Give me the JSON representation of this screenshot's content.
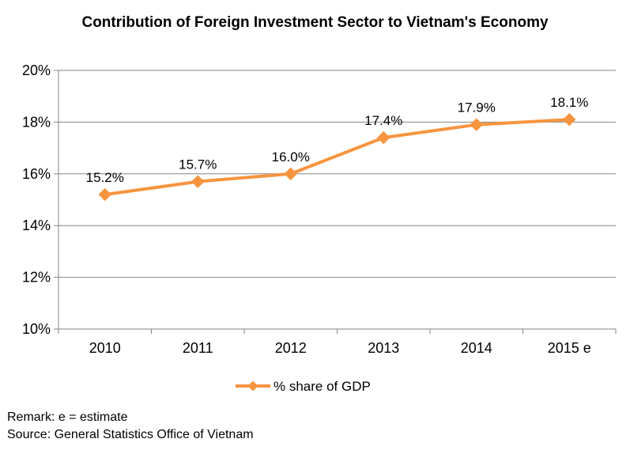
{
  "chart_data": {
    "type": "line",
    "title": "Contribution of Foreign Investment Sector to Vietnam's Economy",
    "categories": [
      "2010",
      "2011",
      "2012",
      "2013",
      "2014",
      "2015 e"
    ],
    "series": [
      {
        "name": "% share of GDP",
        "values": [
          15.2,
          15.7,
          16.0,
          17.4,
          17.9,
          18.1
        ],
        "labels": [
          "15.2%",
          "15.7%",
          "16.0%",
          "17.4%",
          "17.9%",
          "18.1%"
        ],
        "color": "#F7943F",
        "marker": "diamond"
      }
    ],
    "ylim": [
      10,
      20
    ],
    "yticks": [
      10,
      12,
      14,
      16,
      18,
      20
    ],
    "ytick_labels": [
      "10%",
      "12%",
      "14%",
      "16%",
      "18%",
      "20%"
    ],
    "xlabel": "",
    "ylabel": "",
    "grid": true,
    "gridline_color": "#868686",
    "legend_position": "bottom"
  },
  "notes": {
    "remark": "Remark: e = estimate",
    "source": "Source: General Statistics Office of Vietnam"
  }
}
